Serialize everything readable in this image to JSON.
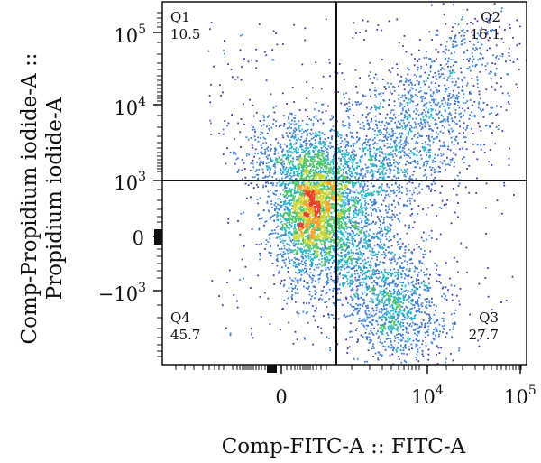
{
  "chart_data": {
    "type": "scatter",
    "plot_kind": "flow-cytometry density dot plot",
    "xlabel": "Comp-FITC-A :: FITC-A",
    "ylabel": [
      "Comp-Propidium iodide-A ::",
      "Propidium iodide-A"
    ],
    "x_scale": "biexponential",
    "y_scale": "biexponential",
    "x_ticks": [
      {
        "value": 0,
        "base": "0",
        "exp": ""
      },
      {
        "value": 10000,
        "base": "10",
        "exp": "4"
      },
      {
        "value": 100000,
        "base": "10",
        "exp": "5"
      }
    ],
    "y_ticks": [
      {
        "value": 100000,
        "base": "10",
        "exp": "5"
      },
      {
        "value": 10000,
        "base": "10",
        "exp": "4"
      },
      {
        "value": 1000,
        "base": "10",
        "exp": "3"
      },
      {
        "value": 0,
        "base": "0",
        "exp": ""
      },
      {
        "value": -1000,
        "base": "−10",
        "exp": "3"
      }
    ],
    "gate": {
      "x": 1500,
      "y": 1000
    },
    "quadrants": [
      {
        "name": "Q1",
        "percent": "10.5",
        "position": "top-left"
      },
      {
        "name": "Q2",
        "percent": "16.1",
        "position": "top-right"
      },
      {
        "name": "Q3",
        "percent": "27.7",
        "position": "bottom-right"
      },
      {
        "name": "Q4",
        "percent": "45.7",
        "position": "bottom-left"
      }
    ],
    "density_colors": [
      "#3a3fb0",
      "#3d7fd6",
      "#27b5c9",
      "#4cc56b",
      "#c9d636",
      "#f2a330",
      "#e8402a"
    ],
    "grid": false,
    "legend": "none"
  }
}
